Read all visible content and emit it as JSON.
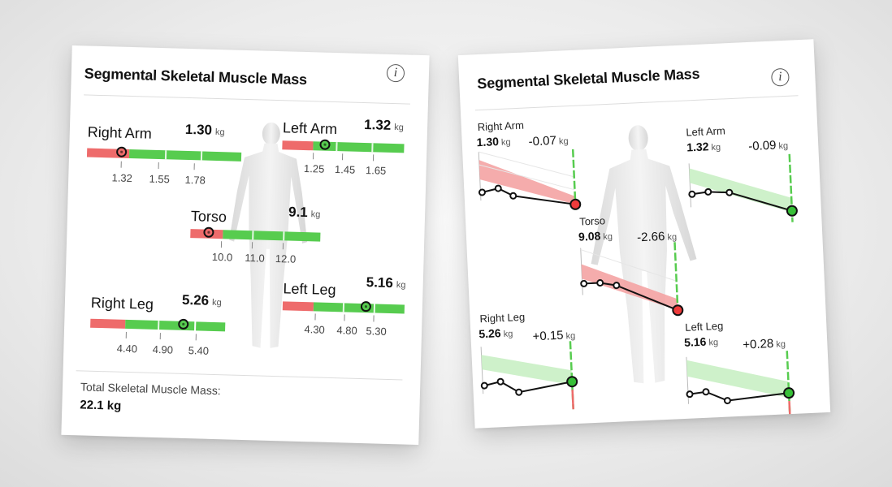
{
  "left_card": {
    "title": "Segmental Skeletal Muscle Mass",
    "info_icon": "info-icon",
    "unit": "kg",
    "segments": [
      {
        "name": "Right Arm",
        "value": "1.30",
        "ticks": [
          "1.32",
          "1.55",
          "1.78"
        ],
        "status": "low"
      },
      {
        "name": "Left Arm",
        "value": "1.32",
        "ticks": [
          "1.25",
          "1.45",
          "1.65"
        ],
        "status": "normal"
      },
      {
        "name": "Torso",
        "value": "9.1",
        "ticks": [
          "10.0",
          "11.0",
          "12.0"
        ],
        "status": "low"
      },
      {
        "name": "Right Leg",
        "value": "5.26",
        "ticks": [
          "4.40",
          "4.90",
          "5.40"
        ],
        "status": "normal"
      },
      {
        "name": "Left Leg",
        "value": "5.16",
        "ticks": [
          "4.30",
          "4.80",
          "5.30"
        ],
        "status": "normal"
      }
    ],
    "total_label": "Total Skeletal Muscle Mass:",
    "total_value": "22.1 kg"
  },
  "right_card": {
    "title": "Segmental Skeletal Muscle Mass",
    "info_icon": "info-icon",
    "unit": "kg",
    "trends": [
      {
        "name": "Right Arm",
        "value": "1.30",
        "delta": "-0.07",
        "status": "low"
      },
      {
        "name": "Left Arm",
        "value": "1.32",
        "delta": "-0.09",
        "status": "normal"
      },
      {
        "name": "Torso",
        "value": "9.08",
        "delta": "-2.66",
        "status": "low"
      },
      {
        "name": "Right Leg",
        "value": "5.26",
        "delta": "+0.15",
        "status": "normal"
      },
      {
        "name": "Left Leg",
        "value": "5.16",
        "delta": "+0.28",
        "status": "normal"
      }
    ]
  },
  "colors": {
    "low": "#ee6b6b",
    "normal": "#57cc4f",
    "band_low": "#f4a3a3",
    "band_normal": "#c9efc4"
  }
}
